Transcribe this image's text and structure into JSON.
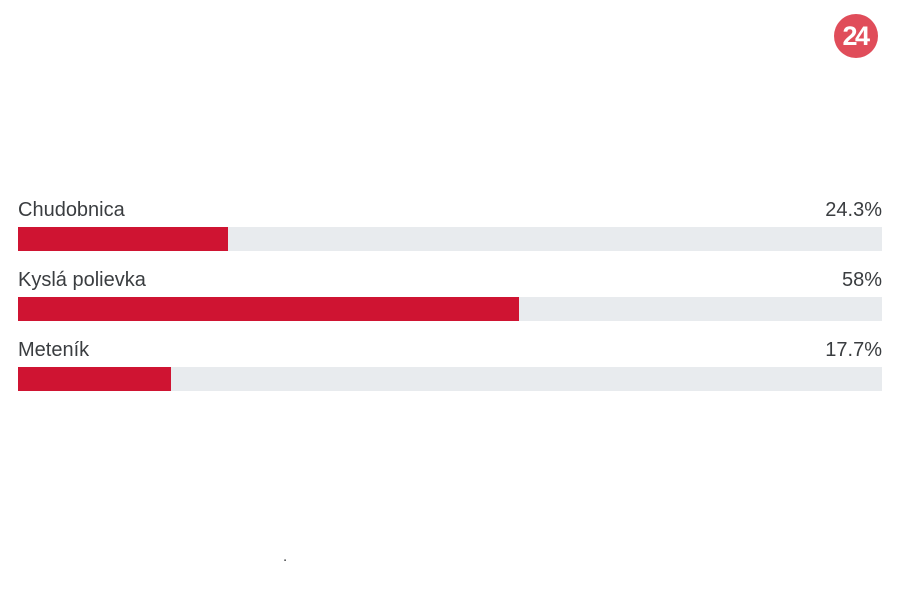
{
  "logo": {
    "text": "24",
    "background_color": "#e04d5a",
    "text_color": "#ffffff"
  },
  "chart_data": {
    "type": "bar",
    "orientation": "horizontal",
    "categories": [
      "Chudobnica",
      "Kyslá polievka",
      "Meteník"
    ],
    "values": [
      24.3,
      58,
      17.7
    ],
    "value_labels": [
      "24.3%",
      "58%",
      "17.7%"
    ],
    "unit": "%",
    "xlim": [
      0,
      100
    ],
    "bar_color": "#cf1432",
    "track_color": "#e8ebee",
    "label_color": "#3a3d40",
    "grid": false,
    "legend_position": "none"
  },
  "footer": {
    "dot": "."
  }
}
